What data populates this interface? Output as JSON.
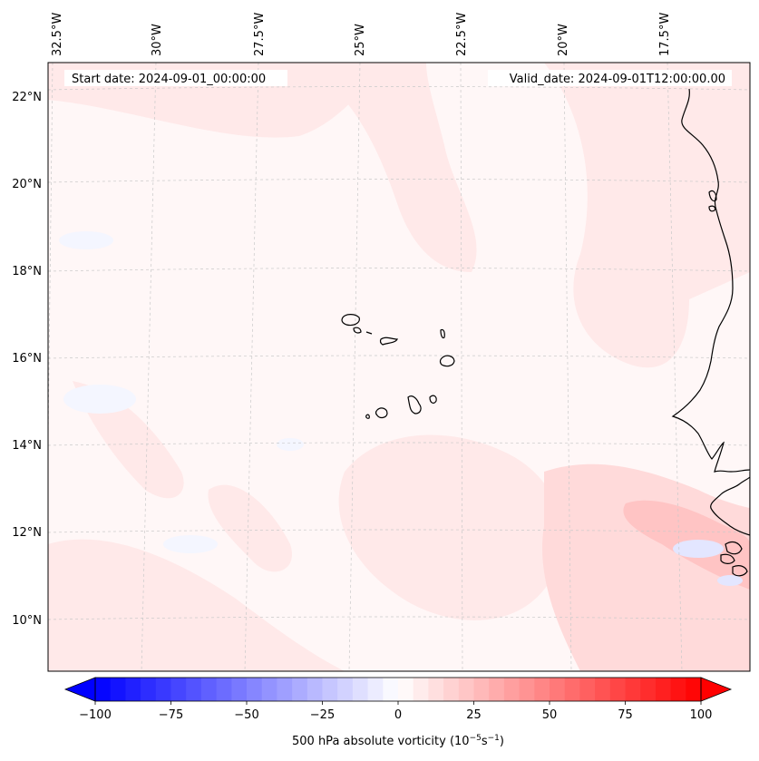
{
  "header": {
    "start_date": "Start date: 2024-09-01_00:00:00",
    "valid_date": "Valid_date: 2024-09-01T12:00:00.00"
  },
  "map": {
    "lon_labels": [
      "32.5°W",
      "30°W",
      "27.5°W",
      "25°W",
      "22.5°W",
      "20°W",
      "17.5°W"
    ],
    "lat_labels": [
      "22°N",
      "20°N",
      "18°N",
      "16°N",
      "14°N",
      "12°N",
      "10°N"
    ],
    "gridlines": true,
    "field_colors": {
      "background": "#fff7f7",
      "weak_positive": "#ffe9e9",
      "moderate_positive": "#ffdada",
      "strong_positive": "#ffc4c4",
      "weak_negative": "#f4f6ff",
      "negative": "#e3e6ff"
    },
    "coastline_color": "#000000"
  },
  "colorbar": {
    "tick_labels": [
      "−100",
      "−75",
      "−50",
      "−25",
      "0",
      "25",
      "50",
      "75",
      "100"
    ],
    "label_main": "500 hPa absolute vorticity (10",
    "label_exp1": "−5",
    "label_mid": "s",
    "label_exp2": "−1",
    "label_end": ")",
    "vmin": -100,
    "vmax": 100,
    "colors": {
      "min": "#0000ff",
      "mid": "#ffffff",
      "max": "#ff0000"
    }
  }
}
